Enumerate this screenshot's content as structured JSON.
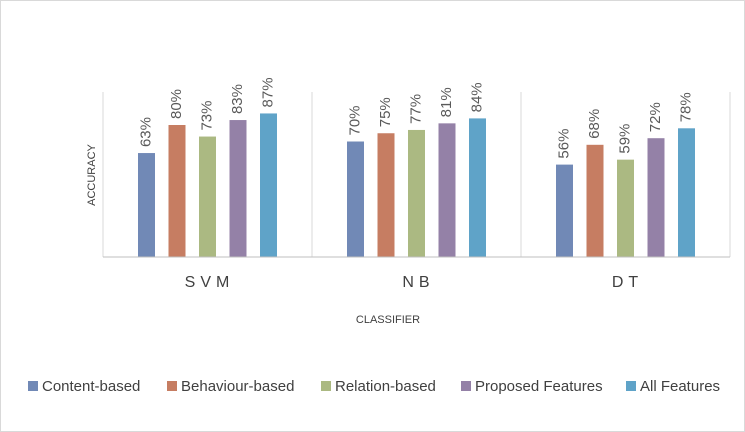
{
  "chart_data": {
    "type": "bar",
    "categories": [
      "SVM",
      "NB",
      "DT"
    ],
    "x_label": "CLASSIFIER",
    "y_label": "ACCURACY",
    "ylim": [
      0,
      100
    ],
    "series": [
      {
        "name": "Content-based",
        "color": "#7189b6",
        "values": [
          63,
          70,
          56
        ],
        "value_labels": [
          "63%",
          "70%",
          "56%"
        ]
      },
      {
        "name": "Behaviour-based",
        "color": "#c67d62",
        "values": [
          80,
          75,
          68
        ],
        "value_labels": [
          "80%",
          "75%",
          "68%"
        ]
      },
      {
        "name": "Relation-based",
        "color": "#abb982",
        "values": [
          73,
          77,
          59
        ],
        "value_labels": [
          "73%",
          "77%",
          "59%"
        ]
      },
      {
        "name": "Proposed Features",
        "color": "#9481a7",
        "values": [
          83,
          81,
          72
        ],
        "value_labels": [
          "83%",
          "81%",
          "72%"
        ]
      },
      {
        "name": "All Features",
        "color": "#5fa3c8",
        "values": [
          87,
          84,
          78
        ],
        "value_labels": [
          "87%",
          "84%",
          "78%"
        ]
      }
    ],
    "legend": "bottom"
  }
}
